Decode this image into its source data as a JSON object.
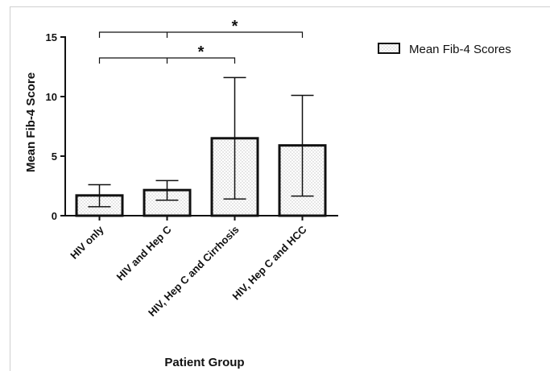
{
  "chart_data": {
    "type": "bar",
    "ylabel": "Mean Fib-4 Score",
    "xlabel": "Patient Group",
    "ylim": [
      0,
      15
    ],
    "yticks": [
      0,
      5,
      10,
      15
    ],
    "categories": [
      "HIV only",
      "HIV and Hep C",
      "HIV, Hep C and Cirrhosis",
      "HIV, Hep C and HCC"
    ],
    "series": [
      {
        "name": "Mean Fib-4 Scores",
        "values": [
          1.7,
          2.15,
          6.5,
          5.9
        ],
        "error_low": [
          0.75,
          1.3,
          1.4,
          1.65
        ],
        "error_high": [
          2.6,
          2.95,
          11.6,
          10.1
        ]
      }
    ],
    "significance": [
      {
        "from": 0,
        "to": 3,
        "label": "*"
      },
      {
        "from": 0,
        "to": 2,
        "label": "*"
      }
    ],
    "legend_position": "top-right",
    "grid": false,
    "colors": {
      "bar_fill": "#ffffff",
      "stroke": "#111111",
      "dot": "#8a8a8a"
    }
  }
}
